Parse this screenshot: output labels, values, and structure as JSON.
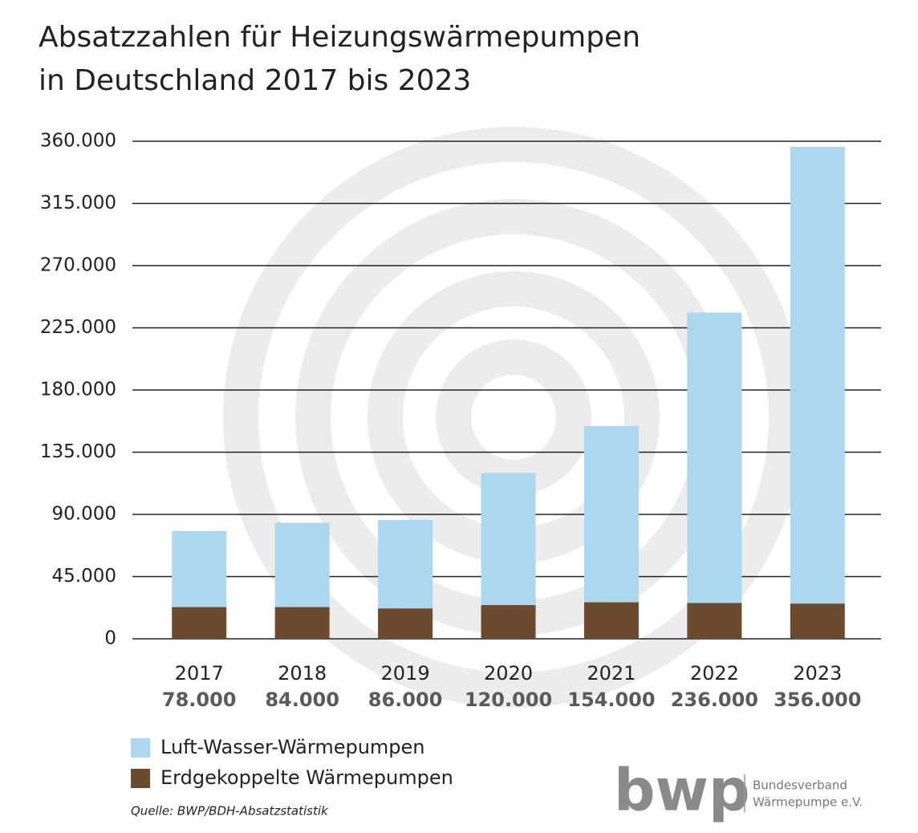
{
  "chart_data": {
    "type": "stacked-bar",
    "title": "Absatzzahlen für Heizungswärmepumpen",
    "subtitle": "in Deutschland 2017 bis 2023",
    "categories": [
      "2017",
      "2018",
      "2019",
      "2020",
      "2021",
      "2022",
      "2023"
    ],
    "series": [
      {
        "name": "Luft-Wasser-Wärmepumpen",
        "color": "#acd8ef",
        "values": [
          55000,
          61000,
          64000,
          95500,
          127500,
          210000,
          330500
        ]
      },
      {
        "name": "Erdgekoppelte Wärmepumpen",
        "color": "#6b4a2e",
        "values": [
          23000,
          23000,
          22000,
          24500,
          26500,
          26000,
          25500
        ]
      }
    ],
    "totals": {
      "values": [
        78000,
        84000,
        86000,
        120000,
        154000,
        236000,
        356000
      ],
      "value_labels": [
        "78.000",
        "84.000",
        "86.000",
        "120.000",
        "154.000",
        "236.000",
        "356.000"
      ]
    },
    "ylim": [
      0,
      360000
    ],
    "yticks": [
      0,
      {
        "value": 45000,
        "label": "45.000"
      },
      {
        "value": 90000,
        "label": "90.000"
      },
      {
        "value": 135000,
        "label": "135.000"
      },
      {
        "value": 180000,
        "label": "180.000"
      },
      {
        "value": 225000,
        "label": "225.000"
      },
      {
        "value": 270000,
        "label": "270.000"
      },
      {
        "value": 315000,
        "label": "315.000"
      },
      {
        "value": 360000,
        "label": "360.000"
      }
    ],
    "grid": true,
    "source": "Quelle: BWP/BDH-Absatzstatistik",
    "logo": {
      "mark": "bwp",
      "line1": "Bundesverband",
      "line2": "Wärmepumpe e.V."
    }
  }
}
